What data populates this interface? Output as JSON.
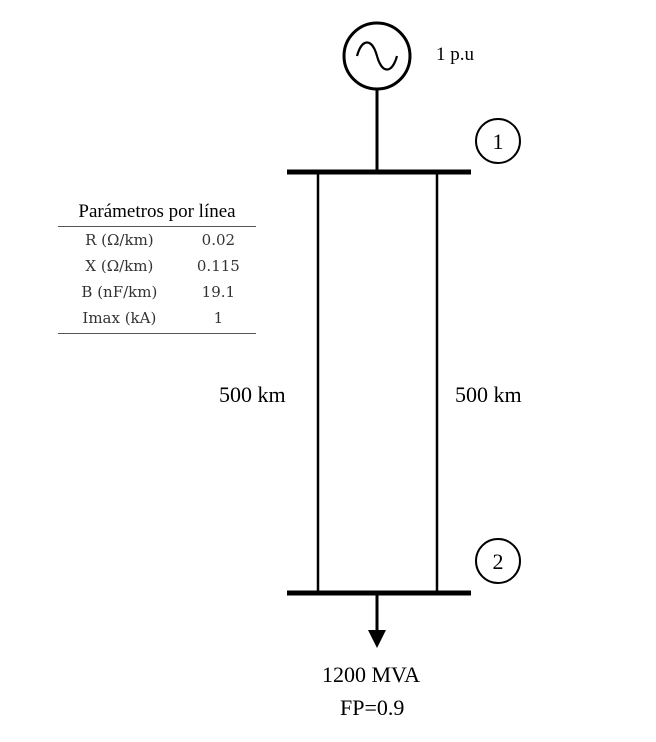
{
  "generator": {
    "label": "1 p.u"
  },
  "buses": [
    {
      "number": "1"
    },
    {
      "number": "2"
    }
  ],
  "lines": {
    "left_length": "500 km",
    "right_length": "500 km"
  },
  "load": {
    "power": "1200 MVA",
    "power_factor": "FP=0.9"
  },
  "parameters": {
    "title": "Parámetros por línea",
    "rows": [
      {
        "key": "R (Ω/km)",
        "value": "0.02"
      },
      {
        "key": "X (Ω/km)",
        "value": "0.115"
      },
      {
        "key": "B (nF/km)",
        "value": "19.1"
      },
      {
        "key": "Imax (kA)",
        "value": "1"
      }
    ]
  }
}
